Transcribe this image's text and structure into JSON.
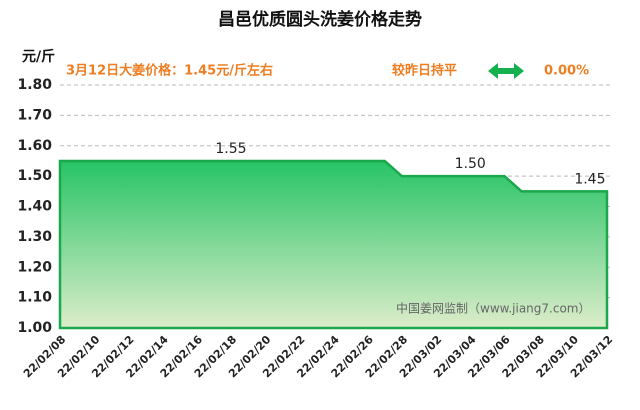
{
  "chart_data": {
    "type": "area",
    "title": "昌邑优质圆头洗姜价格走势",
    "y_unit": "元/斤",
    "annotations": [
      "3月12日大姜价格：1.45元/斤左右",
      "较昨日持平",
      "0.00%"
    ],
    "watermark": "中国姜网监制（www.jiang7.com）",
    "categories": [
      "22/02/08",
      null,
      "22/02/10",
      null,
      "22/02/12",
      null,
      "22/02/14",
      null,
      "22/02/16",
      null,
      "22/02/18",
      null,
      "22/02/20",
      null,
      "22/02/22",
      null,
      "22/02/24",
      null,
      "22/02/26",
      null,
      "22/02/28",
      null,
      "22/03/02",
      null,
      "22/03/04",
      null,
      "22/03/06",
      null,
      "22/03/08",
      null,
      "22/03/10",
      null,
      "22/03/12"
    ],
    "values": [
      1.55,
      1.55,
      1.55,
      1.55,
      1.55,
      1.55,
      1.55,
      1.55,
      1.55,
      1.55,
      1.55,
      1.55,
      1.55,
      1.55,
      1.55,
      1.55,
      1.55,
      1.55,
      1.55,
      1.55,
      1.5,
      1.5,
      1.5,
      1.5,
      1.5,
      1.5,
      1.5,
      1.45,
      1.45,
      1.45,
      1.45,
      1.45,
      1.45
    ],
    "value_labels": [
      null,
      null,
      null,
      null,
      null,
      null,
      null,
      null,
      null,
      null,
      "1.55",
      null,
      null,
      null,
      null,
      null,
      null,
      null,
      null,
      null,
      null,
      null,
      null,
      null,
      "1.50",
      null,
      null,
      null,
      null,
      null,
      null,
      "1.45",
      null
    ],
    "color": "#1aa84c",
    "ylim": [
      1.0,
      1.8
    ],
    "yticks": [
      {
        "value": 1.0,
        "label": "1.00"
      },
      {
        "value": 1.1,
        "label": "1.10"
      },
      {
        "value": 1.2,
        "label": "1.20"
      },
      {
        "value": 1.3,
        "label": "1.30"
      },
      {
        "value": 1.4,
        "label": "1.40"
      },
      {
        "value": 1.5,
        "label": "1.50"
      },
      {
        "value": 1.6,
        "label": "1.60"
      },
      {
        "value": 1.7,
        "label": "1.70"
      },
      {
        "value": 1.8,
        "label": "1.80"
      }
    ],
    "grid": true
  }
}
